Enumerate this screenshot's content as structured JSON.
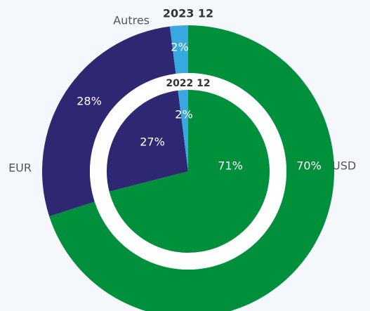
{
  "chart_data": {
    "type": "donut",
    "categories": [
      "USD",
      "EUR",
      "Autres"
    ],
    "colors": [
      "#00903b",
      "#2e2872",
      "#3aa8e0"
    ],
    "series": [
      {
        "name": "2023 12",
        "values": [
          70,
          28,
          2
        ],
        "value_labels": [
          "70%",
          "28%",
          "2%"
        ]
      },
      {
        "name": "2022 12",
        "values": [
          71,
          27,
          2
        ],
        "value_labels": [
          "71%",
          "27%",
          "2%"
        ]
      }
    ]
  }
}
